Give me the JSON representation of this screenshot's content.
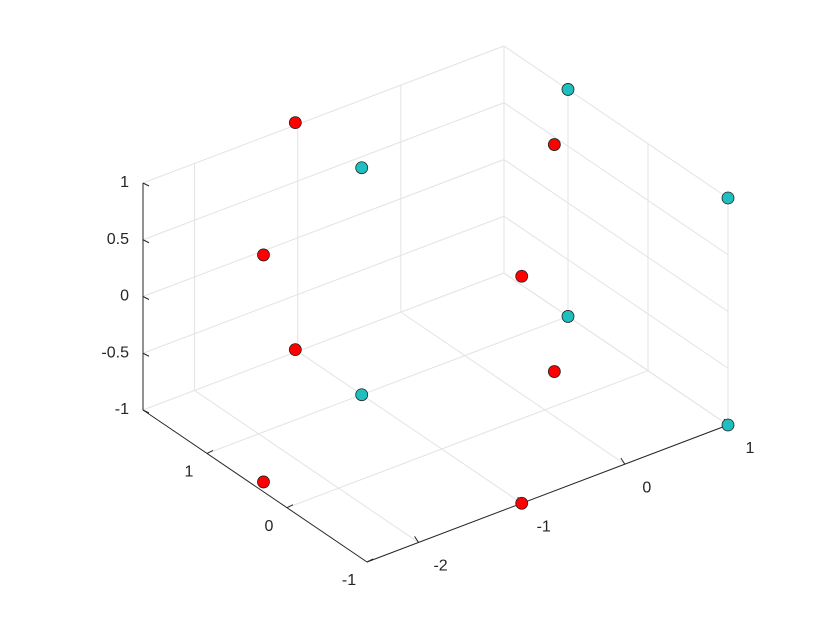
{
  "chart_data": {
    "type": "scatter3d",
    "xlim": [
      -2.5,
      1
    ],
    "ylim": [
      -1,
      1.8
    ],
    "zlim": [
      -1,
      1
    ],
    "xticks": [
      -2,
      -1,
      0,
      1
    ],
    "yticks": [
      -1,
      0,
      1
    ],
    "zticks": [
      -1,
      -0.5,
      0,
      0.5,
      1
    ],
    "grid": true,
    "series": [
      {
        "color": "#ff0000",
        "x": [
          -1,
          -1,
          -2.41,
          -2.41,
          -1,
          -1,
          0.41,
          0.41
        ],
        "y": [
          -1,
          -1,
          0.41,
          0.41,
          1.83,
          1.83,
          0.41,
          0.41
        ],
        "z": [
          -1,
          1,
          -1,
          1,
          -1,
          1,
          -1,
          1
        ]
      },
      {
        "color": "#1fbfbf",
        "x": [
          1,
          1,
          1,
          1,
          -1,
          -1
        ],
        "y": [
          -1,
          -1,
          1,
          1,
          1,
          1
        ],
        "z": [
          -1,
          1,
          -1,
          1,
          -1,
          1
        ]
      }
    ]
  }
}
